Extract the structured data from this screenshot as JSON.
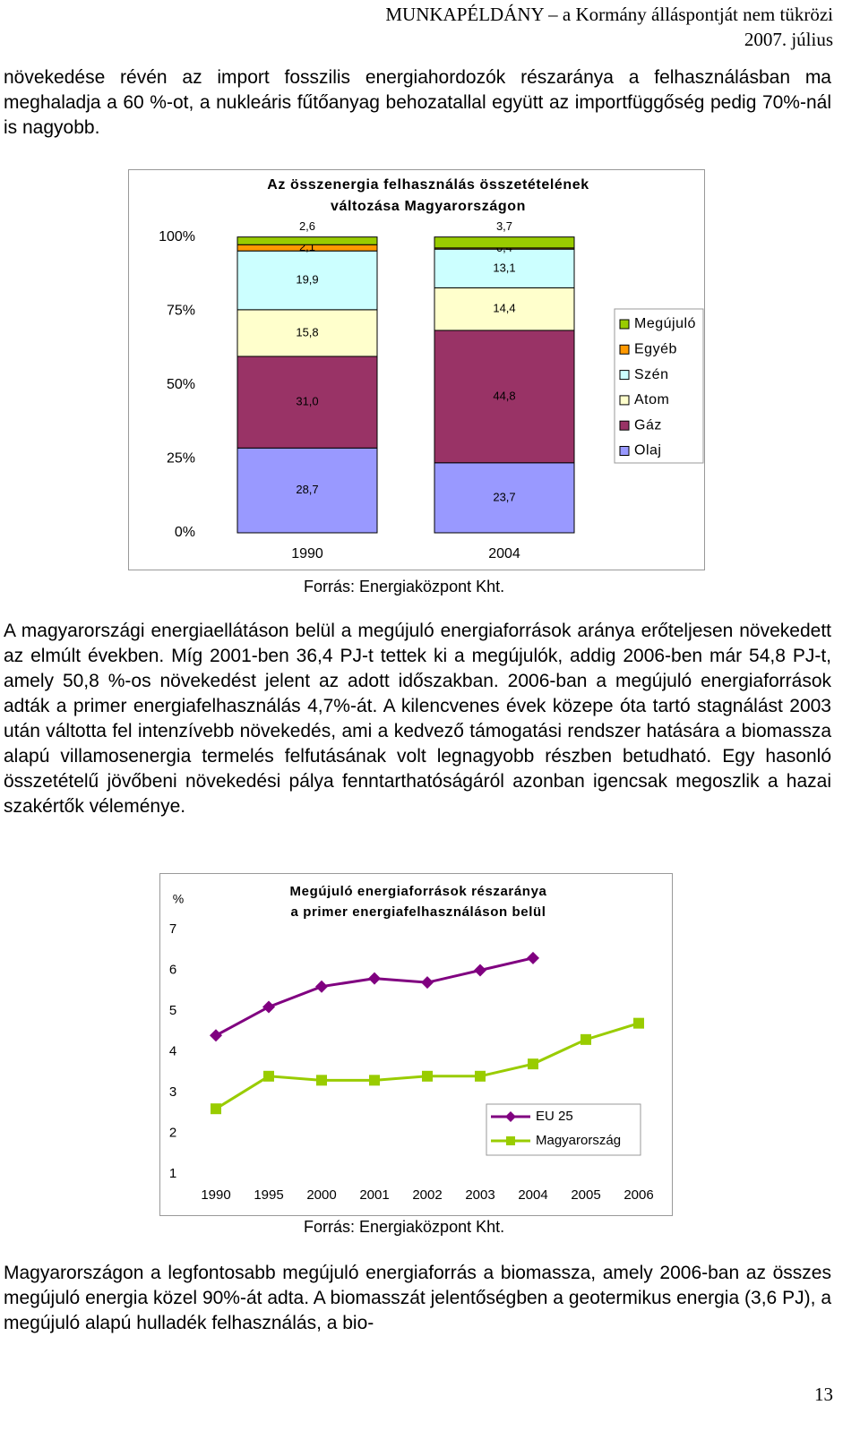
{
  "header": {
    "line1": "MUNKAPÉLDÁNY – a Kormány álláspontját nem tükrözi",
    "line2": "2007. július"
  },
  "paragraphs": [
    "növekedése révén az import fosszilis energiahordozók részaránya a felhasználásban ma meghaladja a 60 %-ot, a nukleáris fűtőanyag behozatallal együtt az importfüggőség pedig 70%-nál is nagyobb.",
    "A magyarországi energiaellátáson belül a megújuló energiaforrások aránya erőteljesen növekedett az elmúlt években. Míg 2001-ben 36,4 PJ-t tettek ki a megújulók, addig 2006-ben már 54,8 PJ-t, amely 50,8 %-os növekedést jelent az adott időszakban. 2006-ban a megújuló energiaforrások adták a primer energiafelhasználás 4,7%-át. A kilencvenes évek közepe óta tartó stagnálást 2003 után váltotta fel intenzívebb növekedés, ami a kedvező támogatási rendszer hatására a biomassza alapú villamosenergia termelés felfutásának volt legnagyobb részben betudható. Egy hasonló összetételű jövőbeni növekedési pálya fenntarthatóságáról azonban igencsak megoszlik a hazai szakértők véleménye.",
    "Magyarországon a legfontosabb megújuló energiaforrás a biomassza, amely 2006-ban az összes megújuló energia közel 90%-át adta. A biomasszát jelentőségben a geotermikus energia (3,6 PJ), a megújuló alapú hulladék felhasználás, a bio-"
  ],
  "chart_data": [
    {
      "type": "stacked-bar",
      "title": [
        "Az összenergia felhasználás összetételének",
        "változása Magyarországon"
      ],
      "categories": [
        "1990",
        "2004"
      ],
      "ylim": [
        0,
        100
      ],
      "yticks": [
        {
          "value": 0,
          "label": "0%"
        },
        {
          "value": 25,
          "label": "25%"
        },
        {
          "value": 50,
          "label": "50%"
        },
        {
          "value": 75,
          "label": "75%"
        },
        {
          "value": 100,
          "label": "100%"
        }
      ],
      "series": [
        {
          "name": "Olaj",
          "color": "#9999ff",
          "values": [
            28.7,
            23.7
          ],
          "value_labels": [
            "28,7",
            "23,7"
          ]
        },
        {
          "name": "Gáz",
          "color": "#993366",
          "values": [
            31.0,
            44.8
          ],
          "value_labels": [
            "31,0",
            "44,8"
          ]
        },
        {
          "name": "Atom",
          "color": "#ffffcc",
          "values": [
            15.8,
            14.4
          ],
          "value_labels": [
            "15,8",
            "14,4"
          ]
        },
        {
          "name": "Szén",
          "color": "#ccffff",
          "values": [
            19.9,
            13.1
          ],
          "value_labels": [
            "19,9",
            "13,1"
          ]
        },
        {
          "name": "Egyéb",
          "color": "#ff9900",
          "values": [
            2.1,
            0.4
          ],
          "value_labels": [
            "2,1",
            "0,4"
          ]
        },
        {
          "name": "Megújuló",
          "color": "#99cc00",
          "values": [
            2.6,
            3.7
          ],
          "value_labels": [
            "2,6",
            "3,7"
          ]
        }
      ],
      "legend": "right",
      "source": "Forrás: Energiaközpont Kht."
    },
    {
      "type": "line",
      "title": [
        "Megújuló energiaforrások részaránya",
        "a primer energiafelhasználáson belül"
      ],
      "ylabel": "%",
      "categories": [
        "1990",
        "1995",
        "2000",
        "2001",
        "2002",
        "2003",
        "2004",
        "2005",
        "2006"
      ],
      "ylim": [
        1,
        7
      ],
      "yticks": [
        1,
        2,
        3,
        4,
        5,
        6,
        7
      ],
      "series": [
        {
          "name": "EU 25",
          "color": "#800080",
          "marker": "diamond",
          "values": [
            4.4,
            5.1,
            5.6,
            5.8,
            5.7,
            6.0,
            6.3,
            null,
            null
          ]
        },
        {
          "name": "Magyarország",
          "color": "#99cc00",
          "marker": "square",
          "values": [
            2.6,
            3.4,
            3.3,
            3.3,
            3.4,
            3.4,
            3.7,
            4.3,
            4.7
          ]
        }
      ],
      "legend": "lower right",
      "source": "Forrás: Energiaközpont Kht."
    }
  ],
  "page_number": "13"
}
